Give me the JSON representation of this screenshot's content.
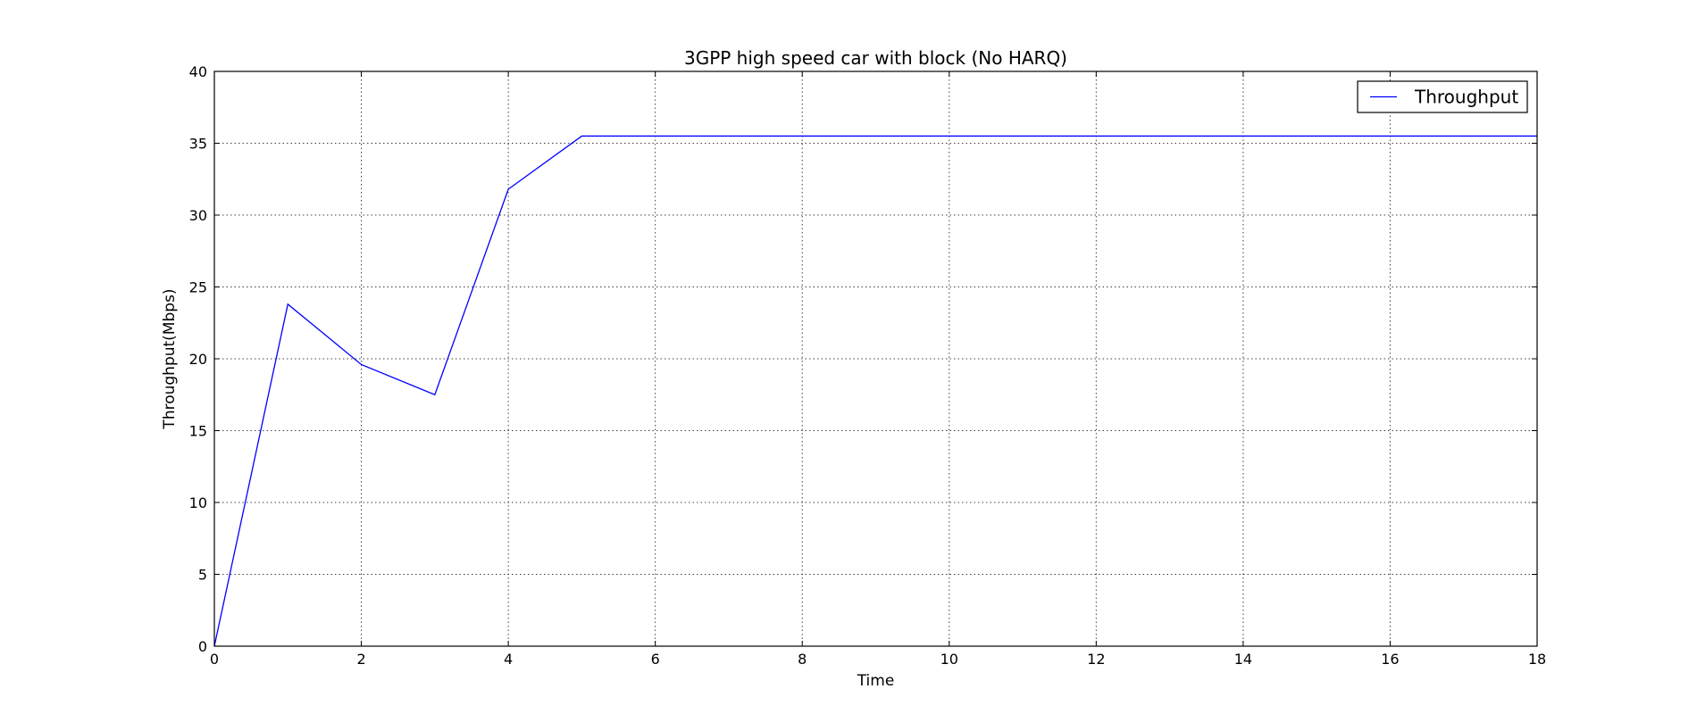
{
  "chart_data": {
    "type": "line",
    "title": "3GPP high speed car with block (No HARQ)",
    "xlabel": "Time",
    "ylabel": "Throughput(Mbps)",
    "xlim": [
      0,
      18
    ],
    "ylim": [
      0,
      40
    ],
    "xticks": [
      0,
      2,
      4,
      6,
      8,
      10,
      12,
      14,
      16,
      18
    ],
    "yticks": [
      0,
      5,
      10,
      15,
      20,
      25,
      30,
      35,
      40
    ],
    "grid": true,
    "legend_position": "top-right",
    "series": [
      {
        "name": "Throughput",
        "color": "#0000ff",
        "x": [
          0,
          1,
          2,
          3,
          4,
          5,
          6,
          7,
          8,
          9,
          10,
          11,
          12,
          13,
          14,
          15,
          16,
          17,
          18
        ],
        "y": [
          0,
          23.8,
          19.6,
          17.5,
          31.8,
          35.5,
          35.5,
          35.5,
          35.5,
          35.5,
          35.5,
          35.5,
          35.5,
          35.5,
          35.5,
          35.5,
          35.5,
          35.5,
          35.5
        ]
      }
    ]
  }
}
